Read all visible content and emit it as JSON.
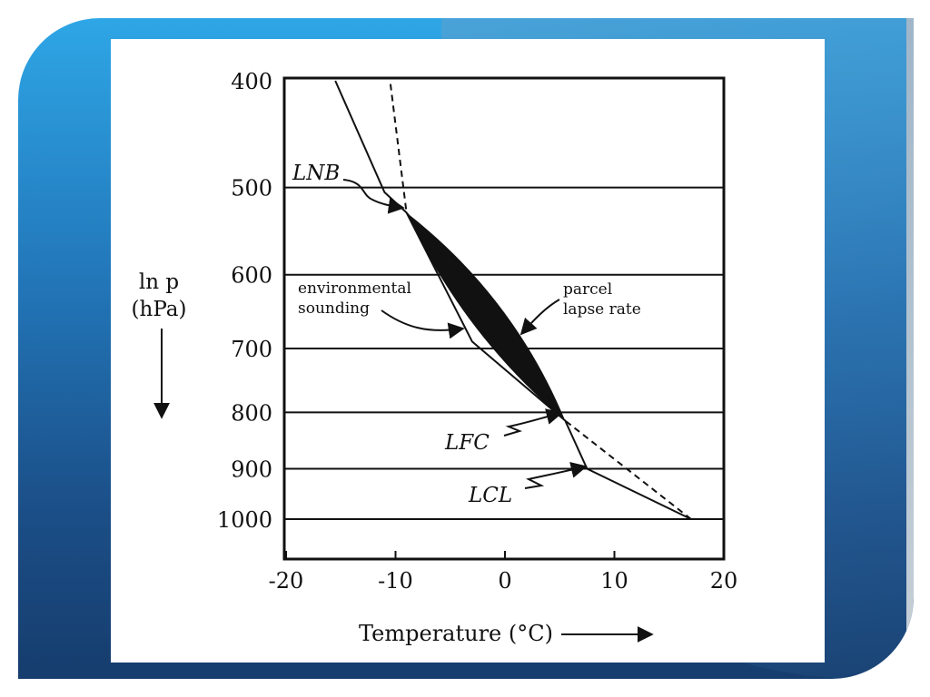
{
  "chart_data": {
    "type": "line",
    "xlabel": "Temperature (°C)",
    "ylabel_line1": "ln p",
    "ylabel_line2": "(hPa)",
    "xlim": [
      -20,
      20
    ],
    "ylim": [
      1060,
      400
    ],
    "y_scale": "log",
    "x_ticks": [
      -20,
      -10,
      0,
      10,
      20
    ],
    "x_tick_labels": [
      "-20",
      "-10",
      "0",
      "10",
      "20"
    ],
    "y_ticks": [
      400,
      500,
      600,
      700,
      800,
      900,
      1000
    ],
    "y_tick_labels": [
      "400",
      "500",
      "600",
      "700",
      "800",
      "900",
      "1000"
    ],
    "gridlines_y": [
      500,
      600,
      700,
      800,
      900,
      1000
    ],
    "series": [
      {
        "label": "environmental sounding",
        "style": "solid",
        "points": [
          [
            17,
            1000
          ],
          [
            7.5,
            900
          ],
          [
            5.5,
            814
          ],
          [
            -3,
            690
          ],
          [
            -9,
            527
          ],
          [
            -11,
            505
          ],
          [
            -15.5,
            400
          ]
        ]
      },
      {
        "label": "parcel lapse rate",
        "style": "dashed",
        "points": [
          [
            17,
            1000
          ],
          [
            5.5,
            814
          ],
          [
            -9,
            527
          ],
          [
            -10.5,
            400
          ]
        ]
      }
    ],
    "cape_fill": {
      "from_pressure": 814,
      "to_pressure": 527,
      "color": "#111111"
    },
    "annotations": {
      "lnb": "LNB",
      "lfc": "LFC",
      "lcl": "LCL",
      "env_line1": "environmental",
      "env_line2": "sounding",
      "parcel_line1": "parcel",
      "parcel_line2": "lapse rate"
    }
  }
}
